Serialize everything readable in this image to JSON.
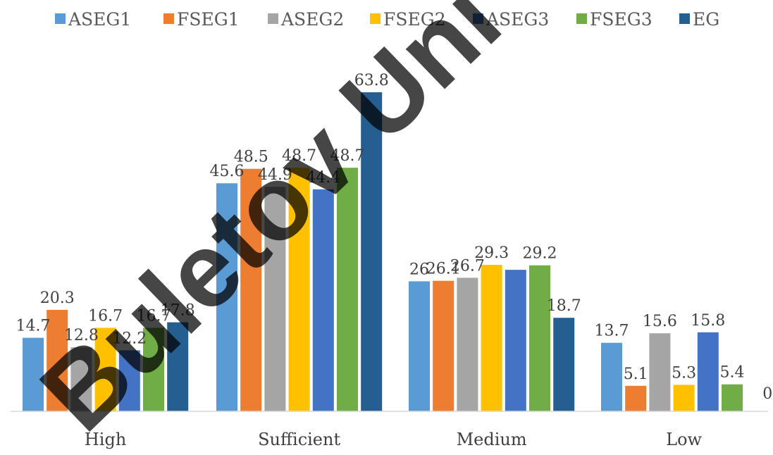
{
  "chart_data": {
    "type": "bar",
    "categories": [
      "High",
      "Sufficient",
      "Medium",
      "Low"
    ],
    "series": [
      {
        "name": "ASEG1",
        "color": "#5B9BD5",
        "values": [
          14.7,
          45.6,
          26,
          13.7
        ]
      },
      {
        "name": "FSEG1",
        "color": "#ED7D31",
        "values": [
          20.3,
          48.5,
          26.1,
          5.1
        ]
      },
      {
        "name": "ASEG2",
        "color": "#A5A5A5",
        "values": [
          12.8,
          44.9,
          26.7,
          15.6
        ]
      },
      {
        "name": "FSEG2",
        "color": "#FFC000",
        "values": [
          16.7,
          48.7,
          29.3,
          5.3
        ]
      },
      {
        "name": "ASEG3",
        "color": "#4472C4",
        "values": [
          12.2,
          44.4,
          28.3,
          15.8
        ]
      },
      {
        "name": "FSEG3",
        "color": "#70AD47",
        "values": [
          16.7,
          48.7,
          29.2,
          5.4
        ]
      },
      {
        "name": "EG",
        "color": "#255E91",
        "values": [
          17.8,
          63.8,
          18.7,
          0
        ]
      }
    ],
    "data_labels": [
      [
        "14.7",
        "45.6",
        "26",
        "13.7"
      ],
      [
        "20.3",
        "48.5",
        "26.1",
        "5.1"
      ],
      [
        "12.8",
        "44.9",
        "26.7",
        "15.6"
      ],
      [
        "16.7",
        "48.7",
        "29.3",
        "5.3"
      ],
      [
        "12.2",
        "44.4",
        "",
        "15.8"
      ],
      [
        "16.7",
        "48.7",
        "29.2",
        "5.4"
      ],
      [
        "17.8",
        "63.8",
        "18.7",
        "0"
      ]
    ],
    "title": "",
    "xlabel": "",
    "ylabel": "",
    "ylim": [
      0,
      70
    ],
    "grid": false,
    "legend_position": "top"
  },
  "watermark": "Buletov Uni"
}
